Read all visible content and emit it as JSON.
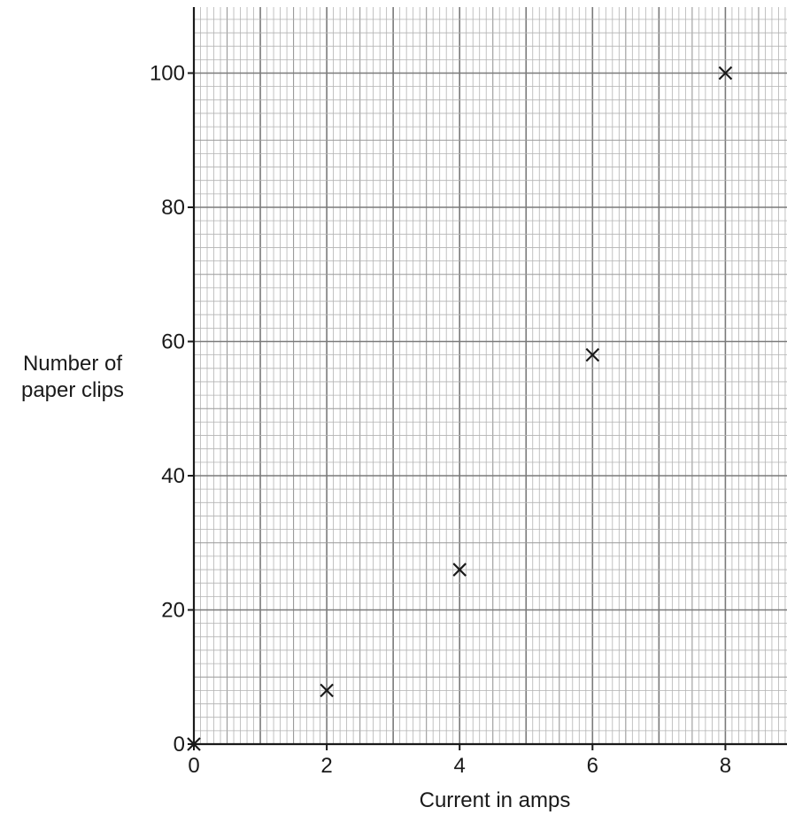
{
  "chart_data": {
    "type": "scatter",
    "title": "",
    "xlabel": "Current in amps",
    "ylabel_lines": [
      "Number of",
      "paper clips"
    ],
    "xlim": [
      0,
      8.9
    ],
    "ylim": [
      0,
      110
    ],
    "x_ticks": [
      0,
      2,
      4,
      6,
      8
    ],
    "y_ticks": [
      0,
      20,
      40,
      60,
      80,
      100
    ],
    "x_tick_labels": [
      "0",
      "2",
      "4",
      "6",
      "8"
    ],
    "y_tick_labels": [
      "0",
      "20",
      "40",
      "60",
      "80",
      "100"
    ],
    "grid": true,
    "marker": "x",
    "points": [
      {
        "x": 0,
        "y": 0
      },
      {
        "x": 2,
        "y": 8
      },
      {
        "x": 4,
        "y": 26
      },
      {
        "x": 6,
        "y": 58
      },
      {
        "x": 8,
        "y": 100
      }
    ]
  }
}
